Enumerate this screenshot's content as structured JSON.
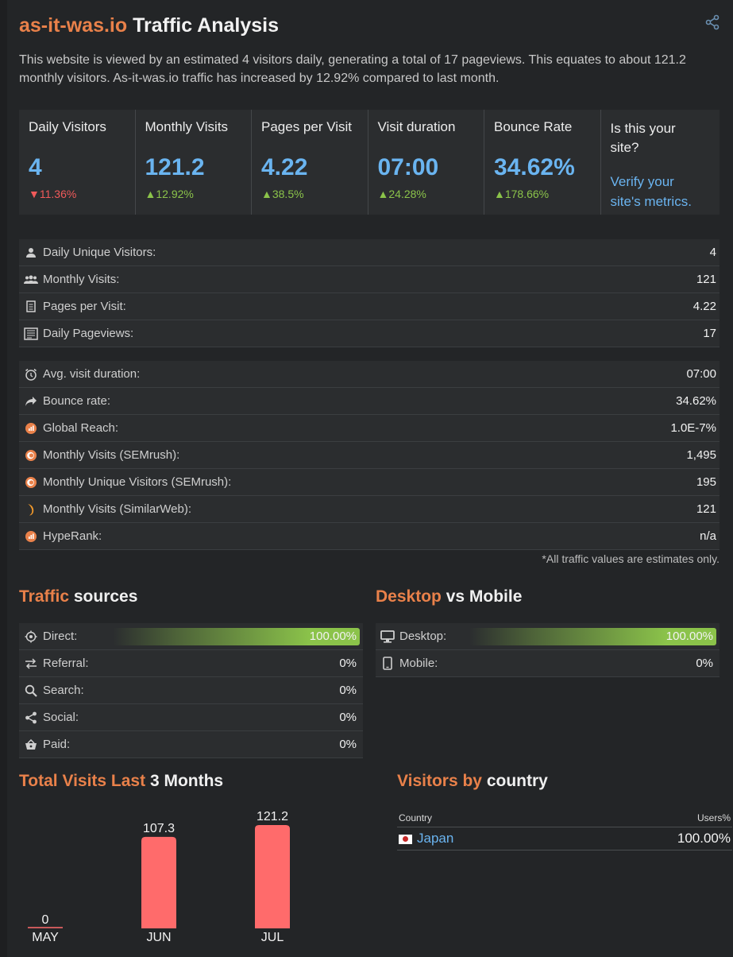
{
  "header": {
    "site": "as-it-was.io",
    "title_rest": "Traffic Analysis",
    "intro": "This website is viewed by an estimated 4 visitors daily, generating a total of 17 pageviews. This equates to about 121.2 monthly visitors. As-it-was.io traffic has increased by 12.92% compared to last month."
  },
  "cards": [
    {
      "label": "Daily Visitors",
      "value": "4",
      "change": "▼11.36%",
      "direction": "down"
    },
    {
      "label": "Monthly Visits",
      "value": "121.2",
      "change": "▲12.92%",
      "direction": "up"
    },
    {
      "label": "Pages per Visit",
      "value": "4.22",
      "change": "▲38.5%",
      "direction": "up"
    },
    {
      "label": "Visit duration",
      "value": "07:00",
      "change": "▲24.28%",
      "direction": "up"
    },
    {
      "label": "Bounce Rate",
      "value": "34.62%",
      "change": "▲178.66%",
      "direction": "up"
    }
  ],
  "verify": {
    "question": "Is this your site?",
    "link": "Verify your site's metrics."
  },
  "stats1": [
    {
      "label": "Daily Unique Visitors:",
      "value": "4",
      "icon": "person-icon"
    },
    {
      "label": "Monthly Visits:",
      "value": "121",
      "icon": "group-icon"
    },
    {
      "label": "Pages per Visit:",
      "value": "4.22",
      "icon": "page-icon"
    },
    {
      "label": "Daily Pageviews:",
      "value": "17",
      "icon": "pages-icon"
    }
  ],
  "stats2": [
    {
      "label": "Avg. visit duration:",
      "value": "07:00",
      "icon": "alarm-icon"
    },
    {
      "label": "Bounce rate:",
      "value": "34.62%",
      "icon": "share-arrow-icon"
    },
    {
      "label": "Global Reach:",
      "value": "1.0E-7%",
      "icon": "alexa-icon"
    },
    {
      "label": "Monthly Visits (SEMrush):",
      "value": "1,495",
      "icon": "semrush-icon"
    },
    {
      "label": "Monthly Unique Visitors (SEMrush):",
      "value": "195",
      "icon": "semrush-icon"
    },
    {
      "label": "Monthly Visits (SimilarWeb):",
      "value": "121",
      "icon": "similarweb-icon"
    },
    {
      "label": "HypeRank:",
      "value": "n/a",
      "icon": "hyperank-icon"
    }
  ],
  "note": "*All traffic values are estimates only.",
  "traffic_sources": {
    "title_accent": "Traffic",
    "title_rest": "sources",
    "rows": [
      {
        "label": "Direct:",
        "value": "100.00%",
        "fraction": 1.0,
        "icon": "target-icon"
      },
      {
        "label": "Referral:",
        "value": "0%",
        "fraction": 0,
        "icon": "swap-icon"
      },
      {
        "label": "Search:",
        "value": "0%",
        "fraction": 0,
        "icon": "search-icon"
      },
      {
        "label": "Social:",
        "value": "0%",
        "fraction": 0,
        "icon": "share-icon"
      },
      {
        "label": "Paid:",
        "value": "0%",
        "fraction": 0,
        "icon": "basket-icon"
      }
    ]
  },
  "devices": {
    "title_accent": "Desktop",
    "title_rest": "vs Mobile",
    "rows": [
      {
        "label": "Desktop:",
        "value": "100.00%",
        "fraction": 1.0,
        "icon": "monitor-icon"
      },
      {
        "label": "Mobile:",
        "value": "0%",
        "fraction": 0,
        "icon": "phone-icon"
      }
    ]
  },
  "visits_chart": {
    "title_accent": "Total Visits Last",
    "title_rest": "3 Months"
  },
  "chart_data": {
    "type": "bar",
    "categories": [
      "MAY",
      "JUN",
      "JUL"
    ],
    "values": [
      0,
      107.3,
      121.2
    ],
    "labels": [
      "0",
      "107.3",
      "121.2"
    ],
    "title": "Total Visits Last 3 Months",
    "ylim": [
      0,
      121.2
    ],
    "color": "#ff6b6b"
  },
  "countries": {
    "title_accent": "Visitors by",
    "title_rest": "country",
    "col_country": "Country",
    "col_users": "Users%",
    "rows": [
      {
        "country": "Japan",
        "value": "100.00%"
      }
    ]
  },
  "colors": {
    "accent": "#e9814a",
    "link": "#6ab4f0",
    "up": "#8bc34a",
    "down": "#f05a5a"
  }
}
